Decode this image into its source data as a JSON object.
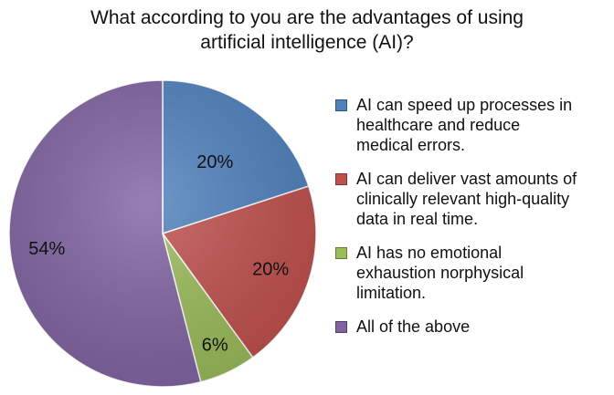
{
  "chart_data": {
    "type": "pie",
    "title": [
      "What according to you are the advantages of using",
      "artificial intelligence (AI)?"
    ],
    "slices": [
      {
        "label": "AI can speed up processes in healthcare and reduce medical errors.",
        "legend_lines": [
          "AI can speed up processes in",
          "healthcare and reduce",
          "medical errors."
        ],
        "value": 20,
        "display": "20%",
        "color": "#4f81bd"
      },
      {
        "label": "AI can deliver vast amounts of clinically relevant high-quality data in real time.",
        "legend_lines": [
          "AI can deliver vast amounts of",
          "clinically relevant high-quality",
          "data in real time."
        ],
        "value": 20,
        "display": "20%",
        "color": "#c0504d"
      },
      {
        "label": "AI has no emotional exhaustion norphysical limitation.",
        "legend_lines": [
          "AI has no emotional",
          "exhaustion norphysical",
          "limitation."
        ],
        "value": 6,
        "display": "6%",
        "color": "#9bbb59"
      },
      {
        "label": "All of the above",
        "legend_lines": [
          "All of the above"
        ],
        "value": 54,
        "display": "54%",
        "color": "#8064a2"
      }
    ],
    "start_angle_deg": 0,
    "direction": "clockwise",
    "legend_position": "right"
  }
}
